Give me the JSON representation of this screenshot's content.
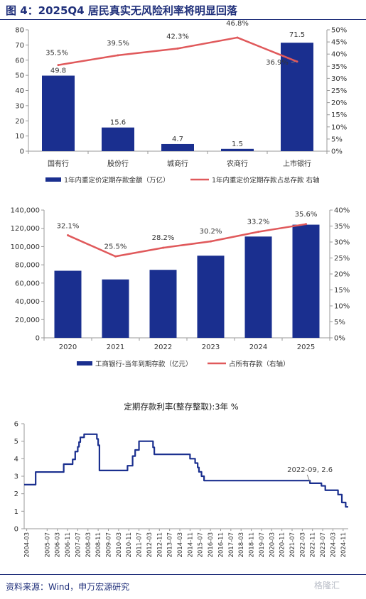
{
  "figure_title": "图 4：2025Q4 居民真实无风险利率将明显回落",
  "source_note": "资料来源：Wind，申万宏源研究",
  "watermark": "格隆汇",
  "colors": {
    "bar": "#1a2f8f",
    "line": "#e0595b",
    "rule": "#1f2f7a",
    "axis": "#999999"
  },
  "chart_data": [
    {
      "type": "bar",
      "categories": [
        "国有行",
        "股份行",
        "城商行",
        "农商行",
        "上市银行"
      ],
      "series": [
        {
          "name": "1年内重定价定期存款金额（万亿）",
          "type": "bar",
          "axis": "left",
          "values": [
            49.8,
            15.6,
            4.7,
            1.5,
            71.5
          ],
          "labels": [
            "49.8",
            "15.6",
            "4.7",
            "1.5",
            "71.5"
          ]
        },
        {
          "name": "1年内重定价定期存款占总存款 右轴",
          "type": "line",
          "axis": "right",
          "values": [
            35.5,
            39.5,
            42.3,
            46.8,
            36.9
          ],
          "labels": [
            "35.5%",
            "39.5%",
            "42.3%",
            "46.8%",
            "36.9%"
          ]
        }
      ],
      "ylim": [
        0,
        80
      ],
      "yticks": [
        "0",
        "10",
        "20",
        "30",
        "40",
        "50",
        "60",
        "70",
        "80"
      ],
      "y2lim": [
        0,
        50
      ],
      "y2ticks": [
        "0%",
        "5%",
        "10%",
        "15%",
        "20%",
        "25%",
        "30%",
        "35%",
        "40%",
        "45%",
        "50%"
      ],
      "legend": "bottom"
    },
    {
      "type": "bar",
      "categories": [
        "2020",
        "2021",
        "2022",
        "2023",
        "2024",
        "2025"
      ],
      "series": [
        {
          "name": "工商银行-当年到期存款（亿元）",
          "type": "bar",
          "axis": "left",
          "values": [
            73500,
            64000,
            74500,
            90000,
            111000,
            124000
          ]
        },
        {
          "name": "占所有存款（右轴）",
          "type": "line",
          "axis": "right",
          "values": [
            32.1,
            25.5,
            28.2,
            30.2,
            33.2,
            35.6
          ],
          "labels": [
            "32.1%",
            "25.5%",
            "28.2%",
            "30.2%",
            "33.2%",
            "35.6%"
          ]
        }
      ],
      "ylim": [
        0,
        140000
      ],
      "yticks": [
        "0",
        "20,000",
        "40,000",
        "60,000",
        "80,000",
        "100,000",
        "120,000",
        "140,000"
      ],
      "y2lim": [
        0,
        40
      ],
      "y2ticks": [
        "0%",
        "5%",
        "10%",
        "15%",
        "20%",
        "25%",
        "30%",
        "35%",
        "40%"
      ],
      "legend": "bottom"
    },
    {
      "type": "line",
      "title": "定期存款利率(整存整取):3年 %",
      "ylim": [
        0,
        6
      ],
      "yticks": [
        "0",
        "1",
        "2",
        "3",
        "4",
        "5",
        "6"
      ],
      "xticks": [
        "2004-03",
        "2005-07",
        "2006-03",
        "2006-11",
        "2007-07",
        "2008-03",
        "2008-11",
        "2009-07",
        "2010-03",
        "2010-11",
        "2011-07",
        "2012-03",
        "2012-11",
        "2013-07",
        "2014-03",
        "2014-11",
        "2015-07",
        "2016-03",
        "2016-11",
        "2017-07",
        "2018-03",
        "2018-11",
        "2019-07",
        "2020-03",
        "2020-11",
        "2021-07",
        "2022-03",
        "2022-11",
        "2023-07",
        "2024-03",
        "2024-11"
      ],
      "x": [
        "2004-01",
        "2004-10",
        "2006-08",
        "2007-03",
        "2007-05",
        "2007-07",
        "2007-08",
        "2007-09",
        "2007-12",
        "2008-10",
        "2008-11",
        "2008-12",
        "2010-10",
        "2011-02",
        "2011-04",
        "2011-07",
        "2012-06",
        "2012-07",
        "2014-11",
        "2015-03",
        "2015-05",
        "2015-06",
        "2015-08",
        "2015-10",
        "2022-09",
        "2023-06",
        "2023-09",
        "2024-07",
        "2024-10",
        "2025-01"
      ],
      "values": [
        2.52,
        3.24,
        3.69,
        3.96,
        4.41,
        4.68,
        4.95,
        5.22,
        5.4,
        5.13,
        4.77,
        3.33,
        3.6,
        4.15,
        4.5,
        5.0,
        4.65,
        4.25,
        4.0,
        3.75,
        3.5,
        3.25,
        3.0,
        2.75,
        2.6,
        2.45,
        2.2,
        1.95,
        1.5,
        1.25
      ],
      "annotation": {
        "text": "2022-09, 2.6",
        "x": "2022-09",
        "y": 2.6
      }
    }
  ]
}
